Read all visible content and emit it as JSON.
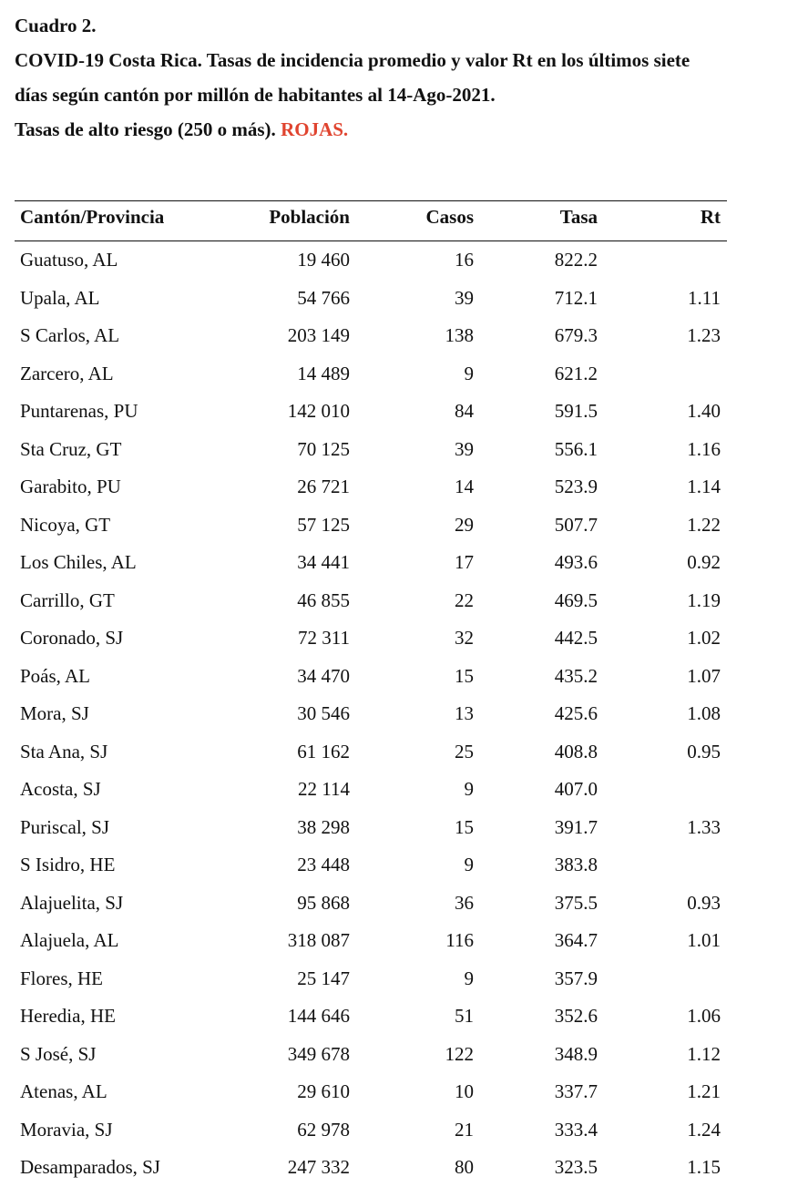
{
  "header": {
    "line1": "Cuadro 2.",
    "line2": "COVID-19 Costa Rica. Tasas de incidencia promedio y valor Rt en los últimos siete",
    "line3": "días según cantón por millón de habitantes al 14-Ago-2021.",
    "line4_text": "Tasas de alto riesgo (250 o más).",
    "line4_highlight": "ROJAS.",
    "highlight_color": "#e0442f"
  },
  "table": {
    "columns": [
      "Cantón/Provincia",
      "Población",
      "Casos",
      "Tasa",
      "Rt"
    ],
    "rows": [
      [
        "Guatuso, AL",
        "19 460",
        "16",
        "822.2",
        ""
      ],
      [
        "Upala, AL",
        "54 766",
        "39",
        "712.1",
        "1.11"
      ],
      [
        "S Carlos, AL",
        "203 149",
        "138",
        "679.3",
        "1.23"
      ],
      [
        "Zarcero, AL",
        "14 489",
        "9",
        "621.2",
        ""
      ],
      [
        "Puntarenas, PU",
        "142 010",
        "84",
        "591.5",
        "1.40"
      ],
      [
        "Sta Cruz, GT",
        "70 125",
        "39",
        "556.1",
        "1.16"
      ],
      [
        "Garabito, PU",
        "26 721",
        "14",
        "523.9",
        "1.14"
      ],
      [
        "Nicoya, GT",
        "57 125",
        "29",
        "507.7",
        "1.22"
      ],
      [
        "Los Chiles, AL",
        "34 441",
        "17",
        "493.6",
        "0.92"
      ],
      [
        "Carrillo, GT",
        "46 855",
        "22",
        "469.5",
        "1.19"
      ],
      [
        "Coronado, SJ",
        "72 311",
        "32",
        "442.5",
        "1.02"
      ],
      [
        "Poás, AL",
        "34 470",
        "15",
        "435.2",
        "1.07"
      ],
      [
        "Mora, SJ",
        "30 546",
        "13",
        "425.6",
        "1.08"
      ],
      [
        "Sta Ana, SJ",
        "61 162",
        "25",
        "408.8",
        "0.95"
      ],
      [
        "Acosta, SJ",
        "22 114",
        "9",
        "407.0",
        ""
      ],
      [
        "Puriscal, SJ",
        "38 298",
        "15",
        "391.7",
        "1.33"
      ],
      [
        "S Isidro, HE",
        "23 448",
        "9",
        "383.8",
        ""
      ],
      [
        "Alajuelita, SJ",
        "95 868",
        "36",
        "375.5",
        "0.93"
      ],
      [
        "Alajuela, AL",
        "318 087",
        "116",
        "364.7",
        "1.01"
      ],
      [
        "Flores, HE",
        "25 147",
        "9",
        "357.9",
        ""
      ],
      [
        "Heredia, HE",
        "144 646",
        "51",
        "352.6",
        "1.06"
      ],
      [
        "S José, SJ",
        "349 678",
        "122",
        "348.9",
        "1.12"
      ],
      [
        "Atenas, AL",
        "29 610",
        "10",
        "337.7",
        "1.21"
      ],
      [
        "Moravia, SJ",
        "62 978",
        "21",
        "333.4",
        "1.24"
      ],
      [
        "Desamparados, SJ",
        "247 332",
        "80",
        "323.5",
        "1.15"
      ]
    ]
  }
}
